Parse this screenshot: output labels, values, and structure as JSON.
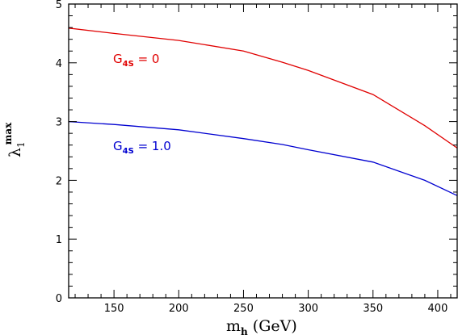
{
  "chart_data": {
    "type": "line",
    "xlabel": {
      "main": "m",
      "sub": "h",
      "unit": " (GeV)"
    },
    "ylabel": {
      "main": "λ",
      "sub": "1",
      "sup": "max"
    },
    "xlim": [
      115,
      415
    ],
    "ylim": [
      0,
      5
    ],
    "x_ticks": [
      150,
      200,
      250,
      300,
      350,
      400
    ],
    "y_ticks": [
      0,
      1,
      2,
      3,
      4,
      5
    ],
    "grid": false,
    "series": [
      {
        "name": "G4S = 0",
        "label_main": "G",
        "label_sub": "4S",
        "label_rest": " = 0",
        "color": "#e00000",
        "x": [
          115,
          150,
          200,
          250,
          280,
          300,
          350,
          390,
          415
        ],
        "y": [
          4.59,
          4.5,
          4.38,
          4.2,
          4.01,
          3.87,
          3.46,
          2.93,
          2.55
        ]
      },
      {
        "name": "G4S = 1.0",
        "label_main": "G",
        "label_sub": "4S",
        "label_rest": " = 1.0",
        "color": "#0000d0",
        "x": [
          115,
          150,
          200,
          250,
          280,
          300,
          350,
          390,
          415
        ],
        "y": [
          3.0,
          2.95,
          2.86,
          2.71,
          2.61,
          2.52,
          2.31,
          2.0,
          1.74
        ]
      }
    ]
  }
}
